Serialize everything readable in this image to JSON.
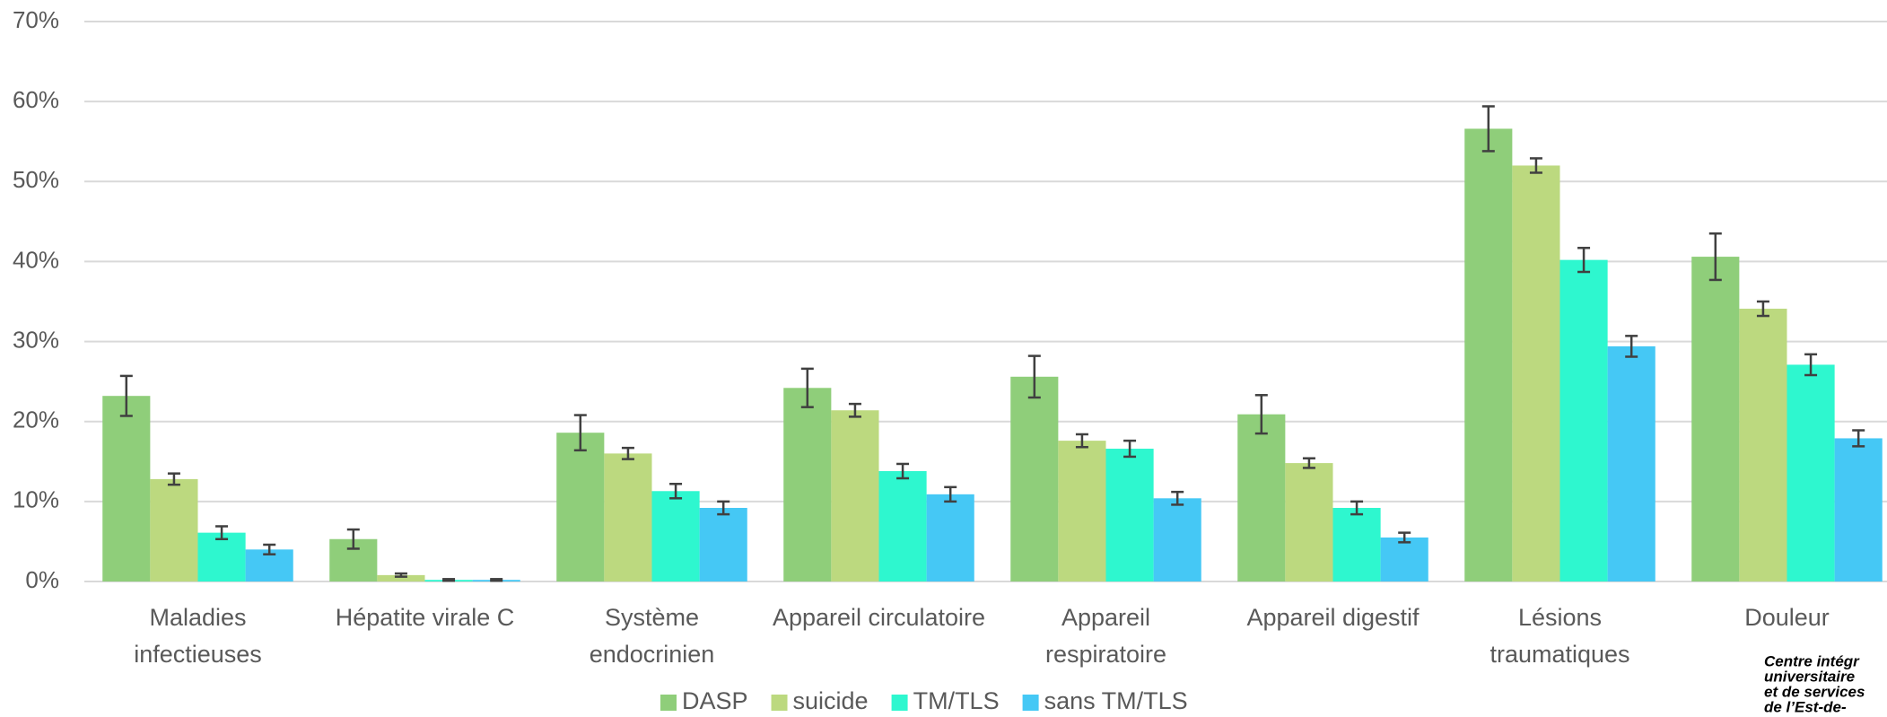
{
  "chart_data": {
    "type": "bar",
    "categories": [
      "Maladies\ninfectieuses",
      "Hépatite virale C",
      "Système\nendocrinien",
      "Appareil circulatoire",
      "Appareil\nrespiratoire",
      "Appareil digestif",
      "Lésions\ntraumatiques",
      "Douleur"
    ],
    "series": [
      {
        "name": "DASP",
        "color": "#8fce7a",
        "values": [
          23.2,
          5.3,
          18.6,
          24.2,
          25.6,
          20.9,
          56.6,
          40.6
        ],
        "errors": [
          2.5,
          1.2,
          2.2,
          2.4,
          2.6,
          2.4,
          2.8,
          2.9
        ]
      },
      {
        "name": "suicide",
        "color": "#bcd97f",
        "values": [
          12.8,
          0.8,
          16.0,
          21.4,
          17.6,
          14.8,
          52.0,
          34.1
        ],
        "errors": [
          0.7,
          0.2,
          0.7,
          0.8,
          0.8,
          0.6,
          0.9,
          0.9
        ]
      },
      {
        "name": "TM/TLS",
        "color": "#2ef7cf",
        "values": [
          6.1,
          0.2,
          11.3,
          13.8,
          16.6,
          9.2,
          40.2,
          27.1
        ],
        "errors": [
          0.8,
          0.1,
          0.9,
          0.9,
          1.0,
          0.8,
          1.5,
          1.3
        ]
      },
      {
        "name": "sans TM/TLS",
        "color": "#45c8f5",
        "values": [
          4.0,
          0.2,
          9.2,
          10.9,
          10.4,
          5.5,
          29.4,
          17.9
        ],
        "errors": [
          0.6,
          0.1,
          0.8,
          0.9,
          0.8,
          0.6,
          1.3,
          1.0
        ]
      }
    ],
    "ylim": [
      0,
      70
    ],
    "yticks": [
      {
        "value": 0,
        "label": "0%"
      },
      {
        "value": 10,
        "label": "10%"
      },
      {
        "value": 20,
        "label": "20%"
      },
      {
        "value": 30,
        "label": "30%"
      },
      {
        "value": 40,
        "label": "40%"
      },
      {
        "value": 50,
        "label": "50%"
      },
      {
        "value": 60,
        "label": "60%"
      },
      {
        "value": 70,
        "label": "70%"
      }
    ],
    "grid": true,
    "legend": "bottom",
    "source": [
      "Centre intégr",
      "universitaire",
      "et de services",
      "de l’Est-de-"
    ]
  }
}
